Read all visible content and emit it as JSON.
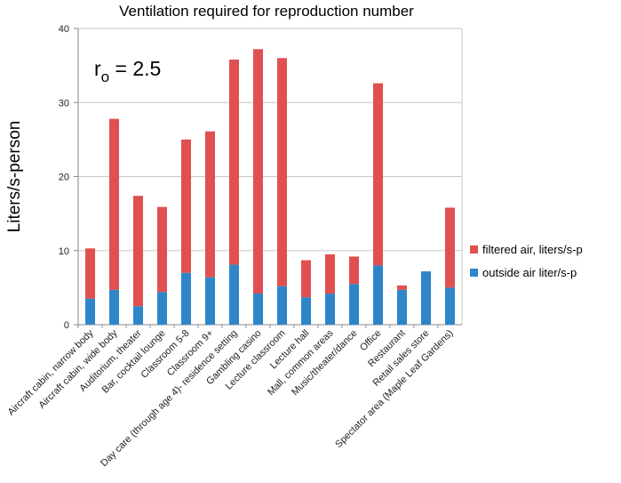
{
  "chart_data": {
    "type": "bar",
    "stacked": true,
    "title": "Ventilation required for reproduction number",
    "xlabel": "",
    "ylabel": "Liters/s-person",
    "ylim": [
      0,
      40
    ],
    "yticks": [
      0,
      10,
      20,
      30,
      40
    ],
    "grid": true,
    "legend_position": "right",
    "annotation": {
      "main": "r",
      "subscript": "o",
      "rest": " = 2.5"
    },
    "categories": [
      "Aircraft cabin, narrow body",
      "Aircraft cabin, wide body",
      "Auditorium, theater",
      "Bar, cocktail lounge",
      "Classroom 5-8",
      "Classroom 9+",
      "Day care (through age 4)- residence setting",
      "Gambling casino",
      "Lecture classroom",
      "Lecture hall",
      "Mall, common areas",
      "Music/theater/dance",
      "Office",
      "Restaurant",
      "Retail sales store",
      "Spectator area (Maple Leaf Gardens)"
    ],
    "series": [
      {
        "name": "outside air liter/s-p",
        "color": "#2E86C9",
        "values": [
          3.5,
          4.7,
          2.5,
          4.4,
          7.0,
          6.4,
          8.1,
          4.2,
          5.2,
          3.7,
          4.2,
          5.5,
          8.0,
          4.7,
          7.2,
          5.0
        ]
      },
      {
        "name": "filtered air, liters/s-p",
        "color": "#E05050",
        "values": [
          6.8,
          23.1,
          14.9,
          11.5,
          18.0,
          19.7,
          27.7,
          33.0,
          30.8,
          5.0,
          5.3,
          3.7,
          24.6,
          0.6,
          0.0,
          10.8
        ]
      }
    ],
    "legend_order": [
      "filtered air, liters/s-p",
      "outside air liter/s-p"
    ]
  }
}
